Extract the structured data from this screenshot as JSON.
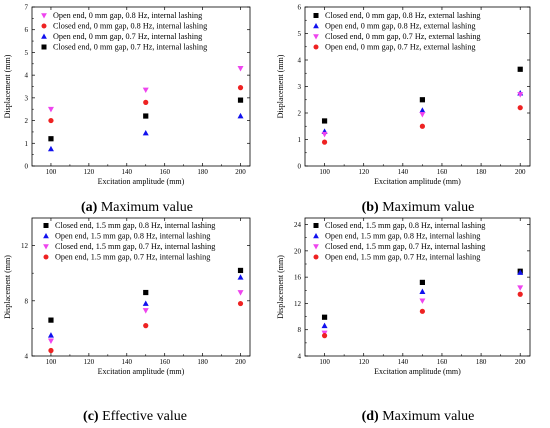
{
  "chart_data": [
    {
      "type": "scatter",
      "caption_letter": "(a)",
      "caption_text": " Maximum value",
      "xlabel": "Excitation amplitude (mm)",
      "ylabel": "Displacement (mm)",
      "xlim": [
        90,
        205
      ],
      "ylim": [
        0,
        7
      ],
      "xticks": [
        100,
        120,
        140,
        160,
        180,
        200
      ],
      "yticks": [
        0,
        1,
        2,
        3,
        4,
        5,
        6,
        7
      ],
      "grid": false,
      "legend_position": "top-left",
      "series": [
        {
          "name": "Open end, 0 mm gap, 0.8 Hz, internal lashing",
          "marker": "triangle-down",
          "color": "#ee44ee",
          "x": [
            100,
            150,
            200
          ],
          "y": [
            2.5,
            3.35,
            4.3
          ]
        },
        {
          "name": "Closed end, 0 mm gap, 0.8 Hz, internal lashing",
          "marker": "circle",
          "color": "#ee2222",
          "x": [
            100,
            150,
            200
          ],
          "y": [
            2.0,
            2.8,
            3.45
          ]
        },
        {
          "name": "Open end, 0 mm gap, 0.7 Hz, internal lashing",
          "marker": "triangle-up",
          "color": "#1111ee",
          "x": [
            100,
            150,
            200
          ],
          "y": [
            0.75,
            1.45,
            2.2
          ]
        },
        {
          "name": "Closed end, 0 mm gap, 0.7 Hz,  internal lashing",
          "marker": "square",
          "color": "#000000",
          "x": [
            100,
            150,
            200
          ],
          "y": [
            1.2,
            2.2,
            2.9
          ]
        }
      ]
    },
    {
      "type": "scatter",
      "caption_letter": "(b)",
      "caption_text": " Maximum value",
      "xlabel": "Excitation amplitude (mm)",
      "ylabel": "Displacement (mm)",
      "xlim": [
        90,
        205
      ],
      "ylim": [
        0,
        6
      ],
      "xticks": [
        100,
        120,
        140,
        160,
        180,
        200
      ],
      "yticks": [
        0,
        1,
        2,
        3,
        4,
        5,
        6
      ],
      "grid": false,
      "legend_position": "top-right",
      "series": [
        {
          "name": "Closed end,  0 mm gap, 0.8 Hz, external lashing",
          "marker": "square",
          "color": "#000000",
          "x": [
            100,
            150,
            200
          ],
          "y": [
            1.7,
            2.5,
            3.65
          ]
        },
        {
          "name": "Open end,  0 mm gap, 0.8 Hz, external lashing",
          "marker": "triangle-up",
          "color": "#1111ee",
          "x": [
            100,
            150,
            200
          ],
          "y": [
            1.3,
            2.1,
            2.75
          ]
        },
        {
          "name": "Closed end,  0 mm gap, 0.7 Hz, external lashing",
          "marker": "triangle-down",
          "color": "#ee44ee",
          "x": [
            100,
            150,
            200
          ],
          "y": [
            1.2,
            1.95,
            2.7
          ]
        },
        {
          "name": "Open end,  0 mm gap, 0.7 Hz, external lashing",
          "marker": "circle",
          "color": "#ee2222",
          "x": [
            100,
            150,
            200
          ],
          "y": [
            0.9,
            1.5,
            2.2
          ]
        }
      ]
    },
    {
      "type": "scatter",
      "caption_letter": "(c)",
      "caption_text": " Effective value",
      "xlabel": "Excitation amplitude (mm)",
      "ylabel": "Displacement (mm)",
      "xlim": [
        90,
        205
      ],
      "ylim": [
        4,
        14
      ],
      "xticks": [
        100,
        120,
        140,
        160,
        180,
        200
      ],
      "yticks": [
        4,
        8,
        12
      ],
      "grid": false,
      "legend_position": "top-right",
      "series": [
        {
          "name": "Closed end,  1.5 mm gap, 0.8 Hz,  internal lashing",
          "marker": "square",
          "color": "#000000",
          "x": [
            100,
            150,
            200
          ],
          "y": [
            6.6,
            8.6,
            10.2
          ]
        },
        {
          "name": "Open end,  1.5 mm gap, 0.8 Hz,  internal lashing",
          "marker": "triangle-up",
          "color": "#1111ee",
          "x": [
            100,
            150,
            200
          ],
          "y": [
            5.5,
            7.8,
            9.7
          ]
        },
        {
          "name": "Closed end,  1.5 mm gap, 0.7 Hz,  internal lashing",
          "marker": "triangle-down",
          "color": "#ee44ee",
          "x": [
            100,
            150,
            200
          ],
          "y": [
            5.1,
            7.3,
            8.6
          ]
        },
        {
          "name": "Open end,  1.5 mm gap, 0.7 Hz,  internal lashing",
          "marker": "circle",
          "color": "#ee2222",
          "x": [
            100,
            150,
            200
          ],
          "y": [
            4.4,
            6.2,
            7.8
          ]
        }
      ]
    },
    {
      "type": "scatter",
      "caption_letter": "(d)",
      "caption_text": " Maximum value",
      "xlabel": "Excitation amplitude (mm)",
      "ylabel": "Displacement (mm)",
      "xlim": [
        90,
        205
      ],
      "ylim": [
        4,
        25
      ],
      "xticks": [
        100,
        120,
        140,
        160,
        180,
        200
      ],
      "yticks": [
        4,
        8,
        12,
        16,
        20,
        24
      ],
      "grid": false,
      "legend_position": "top-right",
      "series": [
        {
          "name": "Closed end,  1.5 mm gap, 0.8 Hz, internal lashing",
          "marker": "square",
          "color": "#000000",
          "x": [
            100,
            150,
            200
          ],
          "y": [
            9.9,
            15.2,
            16.9
          ]
        },
        {
          "name": "Open end,  1.5 mm gap, 0.8 Hz,  internal lashing",
          "marker": "triangle-up",
          "color": "#1111ee",
          "x": [
            100,
            150,
            200
          ],
          "y": [
            8.6,
            13.8,
            16.7
          ]
        },
        {
          "name": "Closed end,  1.5 mm gap, 0.7 Hz,  internal lashing",
          "marker": "triangle-down",
          "color": "#ee44ee",
          "x": [
            100,
            150,
            200
          ],
          "y": [
            7.5,
            12.4,
            14.4
          ]
        },
        {
          "name": "Open end,  1.5 mm gap, 0.7 Hz,  internal lashing",
          "marker": "circle",
          "color": "#ee2222",
          "x": [
            100,
            150,
            200
          ],
          "y": [
            7.1,
            10.8,
            13.4
          ]
        }
      ]
    }
  ]
}
